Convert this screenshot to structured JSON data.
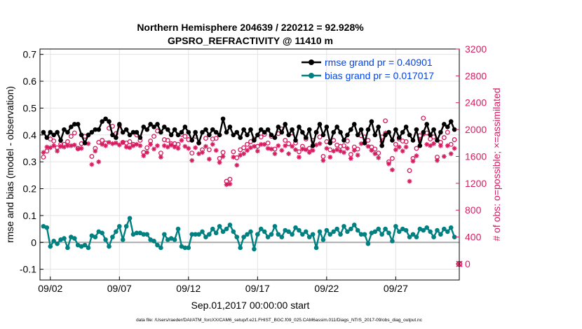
{
  "chart_data": {
    "type": "line",
    "title": "Northern Hemisphere 204639 / 220212 = 92.928%",
    "subtitle": "GPSRO_REFRACTIVITY @ 11410 m",
    "xlabel": "Sep.01,2017 00:00:00 start",
    "ylabel_left": "rmse and bias (model - observation)",
    "ylabel_right": "# of obs: o=possible; ×=assimilated",
    "footnote": "data file: /Users/raeder/DAI/ATM_forcXX/CAM6_setup/f.e21.FHIST_BGC.f09_025.CAM6assim.011/Diags_NTrS_2017-09/obs_diag_output.nc",
    "x_unit": "days since Sep.01,2017 00:00",
    "xlim": [
      0.75,
      31.1
    ],
    "x_ticks": [
      1.5,
      6.5,
      11.5,
      16.5,
      21.5,
      26.5
    ],
    "x_tick_labels": [
      "09/02",
      "09/07",
      "09/12",
      "09/17",
      "09/22",
      "09/27"
    ],
    "ylim_left": [
      -0.14,
      0.72
    ],
    "yticks_left": [
      -0.1,
      0,
      0.1,
      0.2,
      0.3,
      0.4,
      0.5,
      0.6,
      0.7
    ],
    "ytick_labels_left": [
      "-0.1",
      "0",
      "0.1",
      "0.2",
      "0.3",
      "0.4",
      "0.5",
      "0.6",
      "0.7"
    ],
    "ylim_right": [
      -240,
      3200
    ],
    "yticks_right": [
      0,
      400,
      800,
      1200,
      1600,
      2000,
      2400,
      2800,
      3200
    ],
    "ytick_labels_right": [
      "0",
      "400",
      "800",
      "1200",
      "1600",
      "2000",
      "2400",
      "2800",
      "3200"
    ],
    "grid": true,
    "legend_position": "top-right",
    "zero_line": 0,
    "colors": {
      "rmse": "#000000",
      "bias": "#008080",
      "obs": "#d81b60",
      "legend_text": "#0044ee",
      "grid": "#e3e3e3",
      "zero_line": "#aaaaaa"
    },
    "x": [
      1.0,
      1.25,
      1.5,
      1.75,
      2.0,
      2.25,
      2.5,
      2.75,
      3.0,
      3.25,
      3.5,
      3.75,
      4.0,
      4.25,
      4.5,
      4.75,
      5.0,
      5.25,
      5.5,
      5.75,
      6.0,
      6.25,
      6.5,
      6.75,
      7.0,
      7.25,
      7.5,
      7.75,
      8.0,
      8.25,
      8.5,
      8.75,
      9.0,
      9.25,
      9.5,
      9.75,
      10.0,
      10.25,
      10.5,
      10.75,
      11.0,
      11.25,
      11.5,
      11.75,
      12.0,
      12.25,
      12.5,
      12.75,
      13.0,
      13.25,
      13.5,
      13.75,
      14.0,
      14.25,
      14.5,
      14.75,
      15.0,
      15.25,
      15.5,
      15.75,
      16.0,
      16.25,
      16.5,
      16.75,
      17.0,
      17.25,
      17.5,
      17.75,
      18.0,
      18.25,
      18.5,
      18.75,
      19.0,
      19.25,
      19.5,
      19.75,
      20.0,
      20.25,
      20.5,
      20.75,
      21.0,
      21.25,
      21.5,
      21.75,
      22.0,
      22.25,
      22.5,
      22.75,
      23.0,
      23.25,
      23.5,
      23.75,
      24.0,
      24.25,
      24.5,
      24.75,
      25.0,
      25.25,
      25.5,
      25.75,
      26.0,
      26.25,
      26.5,
      26.75,
      27.0,
      27.25,
      27.5,
      27.75,
      28.0,
      28.25,
      28.5,
      28.75,
      29.0,
      29.25,
      29.5,
      29.75,
      30.0,
      30.25,
      30.5,
      30.75
    ],
    "series": [
      {
        "name": "rmse grand pr = 0.40901",
        "axis": "left",
        "marker": "filled-circle",
        "values": [
          0.41,
          0.39,
          0.41,
          0.4,
          0.41,
          0.38,
          0.42,
          0.41,
          0.43,
          0.44,
          0.44,
          0.4,
          0.37,
          0.4,
          0.41,
          0.42,
          0.42,
          0.45,
          0.46,
          0.45,
          0.4,
          0.39,
          0.44,
          0.41,
          0.42,
          0.4,
          0.41,
          0.41,
          0.39,
          0.43,
          0.42,
          0.44,
          0.43,
          0.44,
          0.41,
          0.43,
          0.42,
          0.4,
          0.42,
          0.4,
          0.41,
          0.43,
          0.41,
          0.38,
          0.41,
          0.37,
          0.41,
          0.42,
          0.4,
          0.42,
          0.41,
          0.4,
          0.46,
          0.41,
          0.43,
          0.4,
          0.41,
          0.39,
          0.42,
          0.4,
          0.42,
          0.38,
          0.4,
          0.42,
          0.41,
          0.42,
          0.4,
          0.39,
          0.43,
          0.41,
          0.44,
          0.4,
          0.42,
          0.38,
          0.43,
          0.41,
          0.39,
          0.42,
          0.36,
          0.41,
          0.44,
          0.4,
          0.43,
          0.37,
          0.41,
          0.43,
          0.41,
          0.38,
          0.4,
          0.42,
          0.44,
          0.4,
          0.42,
          0.37,
          0.42,
          0.45,
          0.4,
          0.43,
          0.36,
          0.4,
          0.41,
          0.38,
          0.42,
          0.39,
          0.41,
          0.43,
          0.4,
          0.38,
          0.42,
          0.36,
          0.41,
          0.44,
          0.4,
          0.42,
          0.38,
          0.41,
          0.44,
          0.43,
          0.45,
          0.42
        ]
      },
      {
        "name": "bias grand pr = 0.017017",
        "axis": "left",
        "marker": "filled-circle",
        "values": [
          0.06,
          0.055,
          -0.015,
          0.005,
          -0.005,
          0.01,
          0.015,
          -0.02,
          0.02,
          0.015,
          -0.01,
          -0.015,
          -0.01,
          -0.02,
          0.025,
          0.02,
          0.04,
          0.035,
          0.01,
          -0.015,
          0.02,
          0.04,
          0.06,
          0.01,
          0.06,
          0.09,
          0.03,
          0.035,
          0.035,
          0.03,
          0.03,
          0.01,
          0.005,
          -0.01,
          -0.02,
          0.03,
          0.01,
          0.015,
          0.01,
          0.05,
          -0.015,
          -0.02,
          -0.02,
          0.03,
          0.03,
          0.03,
          0.04,
          0.02,
          0.03,
          0.05,
          0.035,
          0.06,
          0.04,
          0.05,
          0.065,
          0.04,
          0.02,
          -0.02,
          0.02,
          0.03,
          0.04,
          -0.025,
          0.03,
          0.05,
          0.04,
          0.02,
          0.03,
          0.06,
          0.03,
          0.02,
          0.045,
          0.04,
          0.03,
          0.055,
          0.045,
          0.03,
          0.04,
          0.02,
          0.03,
          -0.02,
          0.04,
          0.01,
          0.045,
          0.03,
          0.04,
          0.05,
          0.03,
          0.06,
          0.04,
          0.05,
          0.065,
          0.045,
          0.03,
          0.03,
          -0.005,
          0.035,
          0.04,
          0.05,
          0.03,
          0.05,
          0.035,
          0.005,
          0.06,
          0.04,
          0.05,
          0.045,
          0.02,
          0.03,
          0.02,
          0.05,
          0.045,
          0.055,
          0.04,
          0.02,
          0.045,
          0.03,
          0.05,
          0.04,
          0.055,
          0.02
        ]
      },
      {
        "name": "possible",
        "axis": "right",
        "marker": "open-circle",
        "values": [
          1590,
          1680,
          1860,
          1830,
          1730,
          1780,
          1780,
          1820,
          1900,
          1950,
          1720,
          1790,
          1900,
          1920,
          1600,
          1720,
          1810,
          1840,
          1800,
          2020,
          2050,
          1940,
          2060,
          1810,
          1800,
          1820,
          1780,
          1920,
          1840,
          1660,
          1730,
          1830,
          1900,
          1980,
          1650,
          1850,
          1840,
          1790,
          1790,
          1780,
          1930,
          1900,
          1850,
          1650,
          1900,
          1800,
          1700,
          1870,
          1700,
          1860,
          1870,
          1570,
          1660,
          1230,
          1260,
          1670,
          1580,
          1700,
          1730,
          1780,
          1820,
          1860,
          1750,
          1890,
          1930,
          1800,
          1900,
          1710,
          1940,
          2010,
          1840,
          1790,
          1950,
          1800,
          1670,
          1750,
          1860,
          1720,
          1840,
          1960,
          1890,
          1600,
          1820,
          1700,
          1840,
          1770,
          1750,
          1760,
          1830,
          1630,
          1740,
          1710,
          1910,
          1890,
          1840,
          1740,
          1710,
          1650,
          1890,
          2130,
          1520,
          1570,
          1780,
          1860,
          1830,
          1820,
          1390,
          1570,
          1720,
          1910,
          2170,
          1950,
          1860,
          1890,
          1590,
          1810,
          1880,
          1960,
          1780,
          1850
        ]
      },
      {
        "name": "assimilated",
        "axis": "right",
        "marker": "asterisk",
        "values": [
          1660,
          1740,
          1730,
          1760,
          1680,
          1750,
          1740,
          1760,
          1760,
          1770,
          1710,
          1720,
          1800,
          1790,
          1480,
          1680,
          1520,
          1780,
          1760,
          1810,
          1790,
          1800,
          1770,
          1810,
          1740,
          1730,
          1760,
          1780,
          1760,
          1610,
          1660,
          1780,
          1710,
          1760,
          1590,
          1760,
          1740,
          1770,
          1740,
          1720,
          1840,
          1750,
          1720,
          1540,
          1730,
          1640,
          1660,
          1750,
          1560,
          1780,
          1690,
          1510,
          1600,
          1180,
          1190,
          1590,
          1470,
          1620,
          1640,
          1690,
          1730,
          1750,
          1680,
          1780,
          1780,
          1720,
          1710,
          1640,
          1760,
          1690,
          1760,
          1640,
          1750,
          1700,
          1590,
          1710,
          1700,
          1660,
          1690,
          1770,
          1790,
          1540,
          1720,
          1590,
          1680,
          1700,
          1680,
          1660,
          1720,
          1570,
          1690,
          1620,
          1790,
          1800,
          1750,
          1690,
          1640,
          1580,
          1820,
          1950,
          1490,
          1400,
          1700,
          1740,
          1680,
          1740,
          1230,
          1530,
          1610,
          1850,
          1930,
          1780,
          1760,
          1790,
          1540,
          1760,
          1600,
          1760,
          1640,
          1720
        ]
      }
    ]
  }
}
